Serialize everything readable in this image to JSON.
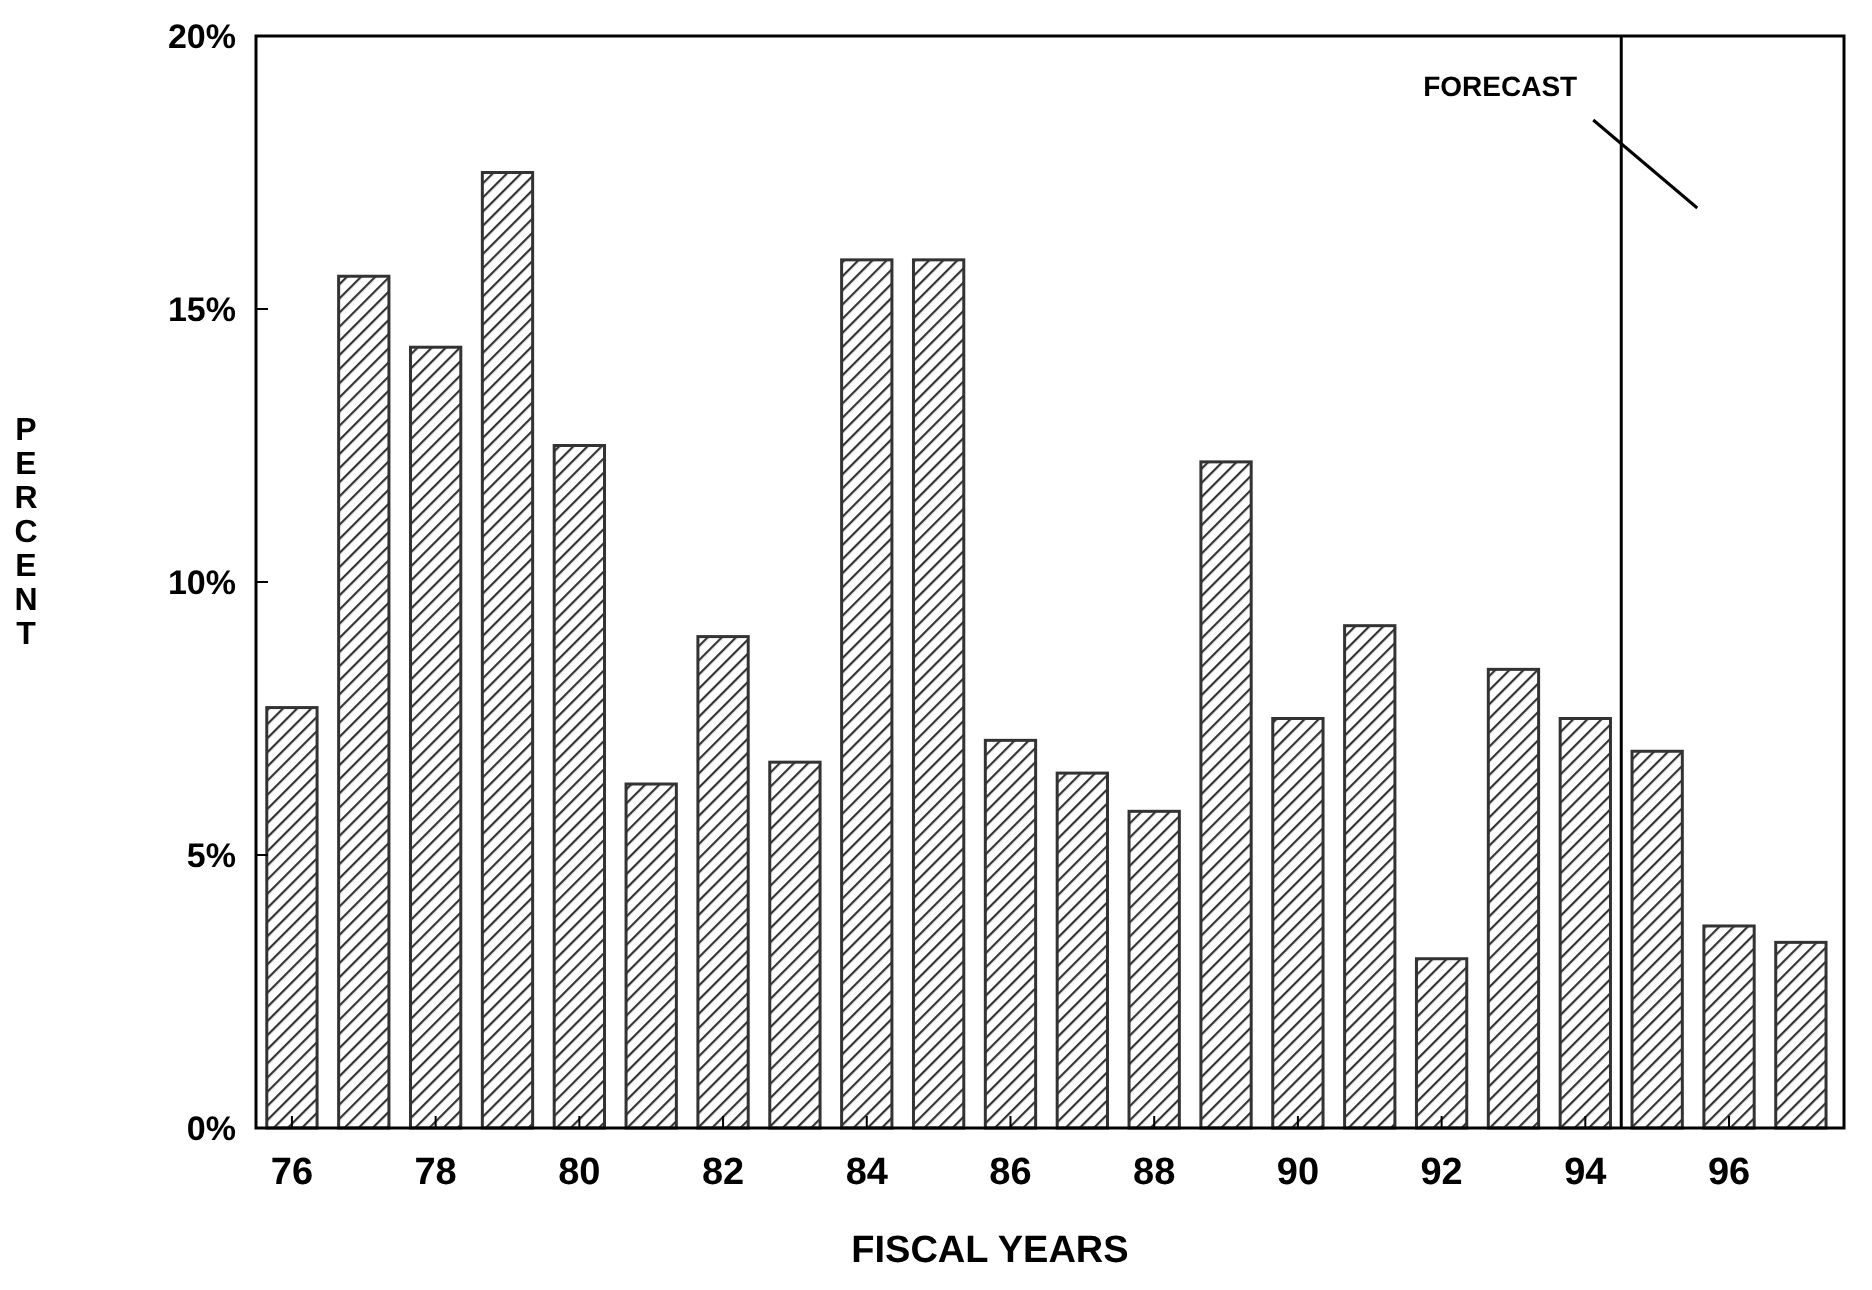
{
  "chart_data": {
    "type": "bar",
    "xlabel": "FISCAL YEARS",
    "ylabel": "PERCENT",
    "x": [
      76,
      77,
      78,
      79,
      80,
      81,
      82,
      83,
      84,
      85,
      86,
      87,
      88,
      89,
      90,
      91,
      92,
      93,
      94,
      95,
      96,
      97
    ],
    "values": [
      7.7,
      15.6,
      14.3,
      17.5,
      12.5,
      6.3,
      9.0,
      6.7,
      15.9,
      15.9,
      7.1,
      6.5,
      5.8,
      12.2,
      7.5,
      9.2,
      3.1,
      8.4,
      7.5,
      6.9,
      3.7,
      3.4
    ],
    "color": "#333333",
    "xlim": [
      75.5,
      97.6
    ],
    "xticks": [
      76,
      78,
      80,
      82,
      84,
      86,
      88,
      90,
      92,
      94,
      96
    ],
    "ylim": [
      0,
      20
    ],
    "yticks": [
      {
        "value": 0,
        "label": "0%"
      },
      {
        "value": 5,
        "label": "5%"
      },
      {
        "value": 10,
        "label": "10%"
      },
      {
        "value": 15,
        "label": "15%"
      },
      {
        "value": 20,
        "label": "20%"
      }
    ],
    "ref_lines": [
      {
        "axis": "x",
        "value": 94.5,
        "label": "FORECAST",
        "color": "#000000"
      }
    ],
    "grid": false
  }
}
